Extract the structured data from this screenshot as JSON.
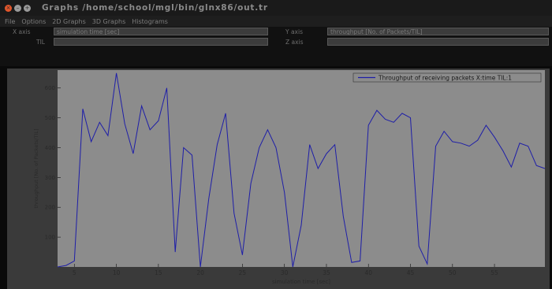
{
  "window": {
    "title": "Graphs  /home/school/mgl/bin/glnx86/out.tr"
  },
  "menu": {
    "items": [
      "File",
      "Options",
      "2D Graphs",
      "3D Graphs",
      "Histograms"
    ]
  },
  "fields": {
    "x_axis_label": "X axis",
    "x_axis_value": "simulation time [sec]",
    "y_axis_label": "Y axis",
    "y_axis_value": "throughput [No. of Packets/TIL]",
    "til_label": "TIL",
    "til_value": "",
    "z_axis_label": "Z axis",
    "z_axis_value": ""
  },
  "colors": {
    "plot_background": "#8c8c8c",
    "series_line": "#1e1ea8",
    "frame": "#1a1a1a"
  },
  "chart_data": {
    "type": "line",
    "xlabel": "simulation time [sec]",
    "ylabel": "throughput [No. of Packets/TIL]",
    "xlim": [
      3,
      61
    ],
    "ylim": [
      0,
      660
    ],
    "xticks": [
      5,
      10,
      15,
      20,
      25,
      30,
      35,
      40,
      45,
      50,
      55
    ],
    "yticks": [
      100,
      200,
      300,
      400,
      500,
      600
    ],
    "legend_position": "top-right",
    "grid": false,
    "series": [
      {
        "name": "Throughput of receiving packets X:time TIL:1",
        "x": [
          3,
          4,
          5,
          6,
          7,
          8,
          9,
          10,
          11,
          12,
          13,
          14,
          15,
          16,
          17,
          18,
          19,
          20,
          21,
          22,
          23,
          24,
          25,
          26,
          27,
          28,
          29,
          30,
          31,
          32,
          33,
          34,
          35,
          36,
          37,
          38,
          39,
          40,
          41,
          42,
          43,
          44,
          45,
          46,
          47,
          48,
          49,
          50,
          51,
          52,
          53,
          54,
          55,
          56,
          57,
          58,
          59,
          60,
          61
        ],
        "y": [
          0,
          5,
          20,
          530,
          420,
          485,
          440,
          650,
          480,
          380,
          540,
          460,
          490,
          600,
          50,
          400,
          375,
          0,
          230,
          410,
          515,
          180,
          40,
          280,
          400,
          460,
          400,
          250,
          0,
          140,
          410,
          330,
          380,
          410,
          170,
          15,
          20,
          475,
          525,
          495,
          485,
          515,
          500,
          70,
          10,
          405,
          455,
          420,
          415,
          405,
          425,
          475,
          435,
          390,
          335,
          415,
          405,
          340,
          330
        ]
      }
    ]
  }
}
